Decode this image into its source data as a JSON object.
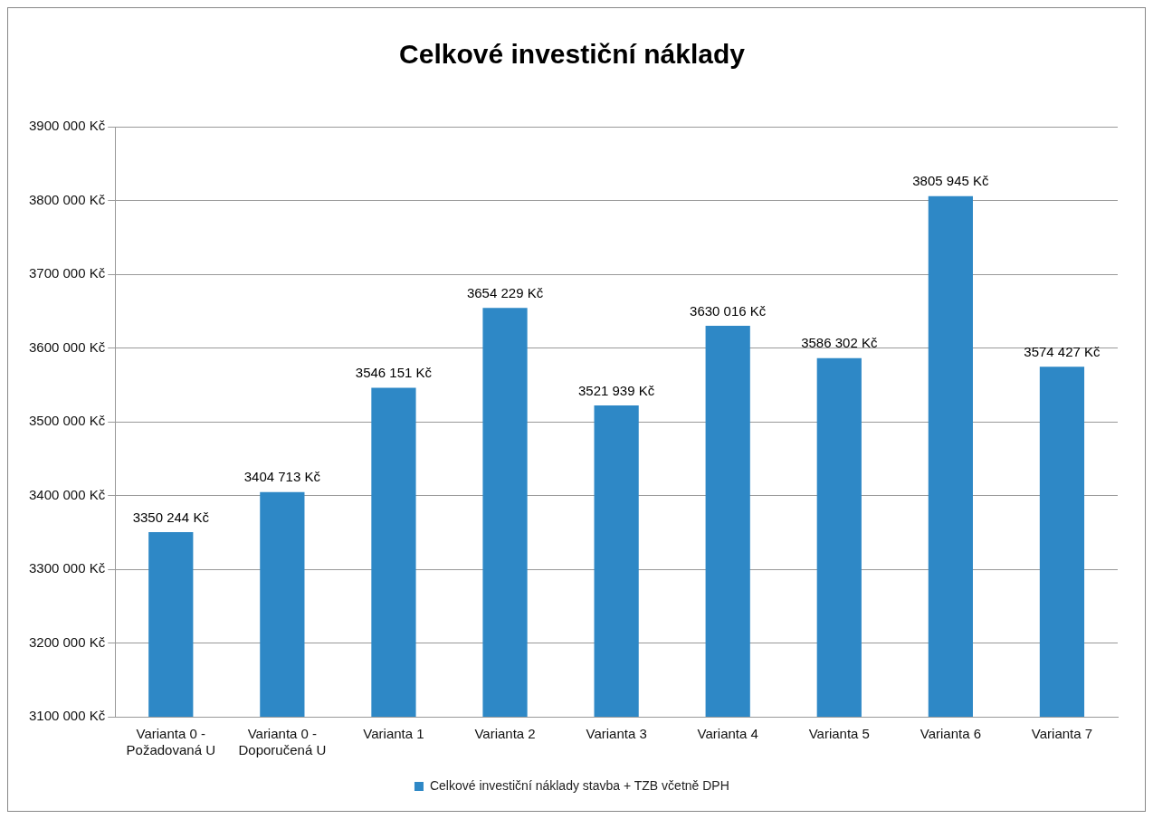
{
  "chart_data": {
    "type": "bar",
    "title": "Celkové investiční náklady",
    "categories": [
      "Varianta 0 - Požadovaná U",
      "Varianta 0 - Doporučená U",
      "Varianta 1",
      "Varianta 2",
      "Varianta 3",
      "Varianta 4",
      "Varianta 5",
      "Varianta 6",
      "Varianta 7"
    ],
    "series": [
      {
        "name": "Celkové investiční náklady stavba + TZB včetně DPH",
        "color": "#2e88c6",
        "values": [
          3350244,
          3404713,
          3546151,
          3654229,
          3521939,
          3630016,
          3586302,
          3805945,
          3574427
        ],
        "value_labels": [
          "3350 244 Kč",
          "3404 713 Kč",
          "3546 151 Kč",
          "3654 229 Kč",
          "3521 939 Kč",
          "3630 016 Kč",
          "3586 302 Kč",
          "3805 945 Kč",
          "3574 427 Kč"
        ]
      }
    ],
    "ylim": [
      3100000,
      3900000
    ],
    "yticks": [
      {
        "value": 3100000,
        "label": "3100 000 Kč"
      },
      {
        "value": 3200000,
        "label": "3200 000 Kč"
      },
      {
        "value": 3300000,
        "label": "3300 000 Kč"
      },
      {
        "value": 3400000,
        "label": "3400 000 Kč"
      },
      {
        "value": 3500000,
        "label": "3500 000 Kč"
      },
      {
        "value": 3600000,
        "label": "3600 000 Kč"
      },
      {
        "value": 3700000,
        "label": "3700 000 Kč"
      },
      {
        "value": 3800000,
        "label": "3800 000 Kč"
      },
      {
        "value": 3900000,
        "label": "3900 000 Kč"
      }
    ],
    "grid": "y",
    "legend": "bottom"
  }
}
